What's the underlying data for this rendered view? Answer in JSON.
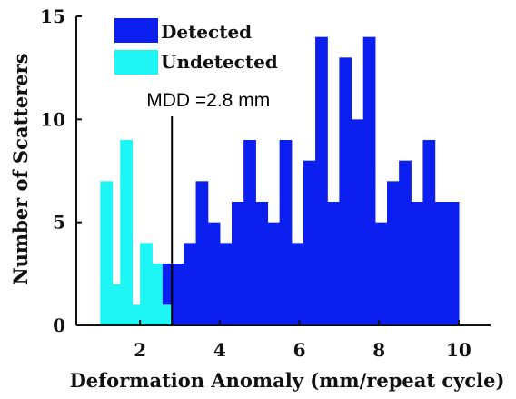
{
  "chart_data": {
    "type": "bar",
    "xlabel": "Deformation Anomaly (mm/repeat cycle)",
    "ylabel": "Number of Scatterers",
    "xlim": [
      0.4,
      10.8
    ],
    "ylim": [
      0,
      15
    ],
    "xticks": [
      2,
      4,
      6,
      8,
      10
    ],
    "yticks": [
      0,
      5,
      10,
      15
    ],
    "bin_width": 0.3,
    "legend_position": "top-left",
    "grid": false,
    "series": [
      {
        "name": "Detected",
        "color": "#0a1ff0",
        "bins": [
          {
            "x0": 2.5,
            "v": 3
          },
          {
            "x0": 2.8,
            "v": 3
          },
          {
            "x0": 3.1,
            "v": 4
          },
          {
            "x0": 3.4,
            "v": 7
          },
          {
            "x0": 3.7,
            "v": 5
          },
          {
            "x0": 4.0,
            "v": 4
          },
          {
            "x0": 4.3,
            "v": 6
          },
          {
            "x0": 4.6,
            "v": 9
          },
          {
            "x0": 4.9,
            "v": 6
          },
          {
            "x0": 5.2,
            "v": 5
          },
          {
            "x0": 5.5,
            "v": 9
          },
          {
            "x0": 5.8,
            "v": 4
          },
          {
            "x0": 6.1,
            "v": 8
          },
          {
            "x0": 6.4,
            "v": 14
          },
          {
            "x0": 6.7,
            "v": 6
          },
          {
            "x0": 7.0,
            "v": 13
          },
          {
            "x0": 7.3,
            "v": 10
          },
          {
            "x0": 7.6,
            "v": 14
          },
          {
            "x0": 7.9,
            "v": 5
          },
          {
            "x0": 8.2,
            "v": 7
          },
          {
            "x0": 8.5,
            "v": 8
          },
          {
            "x0": 8.8,
            "v": 6
          },
          {
            "x0": 9.1,
            "v": 9
          },
          {
            "x0": 9.4,
            "v": 6
          },
          {
            "x0": 9.7,
            "v": 6
          }
        ]
      },
      {
        "name": "Undetected",
        "color": "#1ef5f5",
        "bins": [
          {
            "x0": 1.0,
            "v": 7
          },
          {
            "x0": 1.25,
            "v": 2
          },
          {
            "x0": 1.5,
            "v": 9
          },
          {
            "x0": 1.75,
            "v": 1
          },
          {
            "x0": 2.0,
            "v": 4
          },
          {
            "x0": 2.25,
            "v": 3
          },
          {
            "x0": 2.5,
            "v": 1
          }
        ]
      }
    ],
    "annotation": {
      "label": "MDD =2.8 mm",
      "x": 2.8
    }
  }
}
